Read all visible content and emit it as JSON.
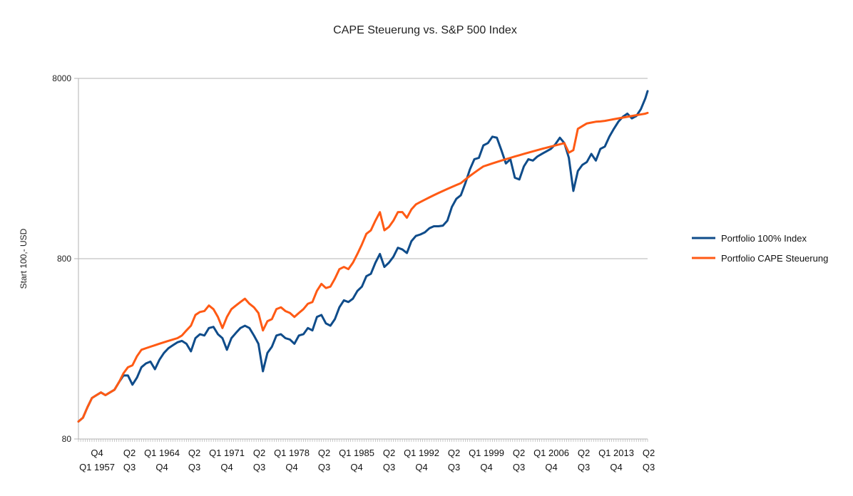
{
  "chart_data": {
    "type": "line",
    "title": "CAPE Steuerung vs. S&P 500 Index",
    "xlabel": "",
    "ylabel": "Start 100,- USD",
    "y_scale": "log",
    "ylim": [
      80,
      8000
    ],
    "y_ticks": [
      80,
      800,
      8000
    ],
    "y_tick_labels": [
      "80",
      "800",
      "8000"
    ],
    "grid": true,
    "legend_position": "right",
    "x_start": "1954 Q1",
    "x_end": "2017 Q2",
    "x_tick_labels": [
      [
        "Q4",
        "Q1 1957"
      ],
      [
        "Q3",
        "Q2"
      ],
      [
        "Q1 1964",
        "Q4"
      ],
      [
        "Q3",
        "Q2"
      ],
      [
        "Q1 1971",
        "Q4"
      ],
      [
        "Q3",
        "Q2"
      ],
      [
        "Q1 1978",
        "Q4"
      ],
      [
        "Q3",
        "Q2"
      ],
      [
        "Q1 1985",
        "Q4"
      ],
      [
        "Q3",
        "Q2"
      ],
      [
        "Q1 1992",
        "Q4"
      ],
      [
        "Q3",
        "Q2"
      ],
      [
        "Q1 1999",
        "Q4"
      ],
      [
        "Q3",
        "Q2"
      ],
      [
        "Q1 2006",
        "Q4"
      ],
      [
        "Q3",
        "Q2"
      ],
      [
        "Q1 2013",
        "Q4"
      ],
      [
        "Q3",
        "Q2"
      ]
    ],
    "series": [
      {
        "name": "Portfolio 100% Index",
        "color": "#0f4c8a",
        "points": [
          [
            "1954 Q1",
            100
          ],
          [
            "1954 Q3",
            105
          ],
          [
            "1955 Q1",
            120
          ],
          [
            "1955 Q3",
            135
          ],
          [
            "1956 Q1",
            140
          ],
          [
            "1956 Q3",
            145
          ],
          [
            "1957 Q1",
            140
          ],
          [
            "1957 Q3",
            145
          ],
          [
            "1958 Q1",
            150
          ],
          [
            "1958 Q3",
            165
          ],
          [
            "1959 Q1",
            180
          ],
          [
            "1959 Q3",
            180
          ],
          [
            "1960 Q1",
            160
          ],
          [
            "1960 Q3",
            175
          ],
          [
            "1961 Q1",
            200
          ],
          [
            "1961 Q3",
            210
          ],
          [
            "1962 Q1",
            215
          ],
          [
            "1962 Q3",
            195
          ],
          [
            "1963 Q1",
            220
          ],
          [
            "1963 Q3",
            240
          ],
          [
            "1964 Q1",
            255
          ],
          [
            "1964 Q3",
            265
          ],
          [
            "1965 Q1",
            275
          ],
          [
            "1965 Q3",
            280
          ],
          [
            "1966 Q1",
            270
          ],
          [
            "1966 Q3",
            245
          ],
          [
            "1967 Q1",
            290
          ],
          [
            "1967 Q3",
            305
          ],
          [
            "1968 Q1",
            300
          ],
          [
            "1968 Q3",
            330
          ],
          [
            "1969 Q1",
            335
          ],
          [
            "1969 Q3",
            305
          ],
          [
            "1970 Q1",
            290
          ],
          [
            "1970 Q3",
            250
          ],
          [
            "1971 Q1",
            290
          ],
          [
            "1971 Q3",
            310
          ],
          [
            "1972 Q1",
            330
          ],
          [
            "1972 Q3",
            340
          ],
          [
            "1973 Q1",
            330
          ],
          [
            "1973 Q3",
            300
          ],
          [
            "1974 Q1",
            270
          ],
          [
            "1974 Q3",
            190
          ],
          [
            "1975 Q1",
            240
          ],
          [
            "1975 Q3",
            260
          ],
          [
            "1976 Q1",
            300
          ],
          [
            "1976 Q3",
            305
          ],
          [
            "1977 Q1",
            290
          ],
          [
            "1977 Q3",
            285
          ],
          [
            "1978 Q1",
            270
          ],
          [
            "1978 Q3",
            300
          ],
          [
            "1979 Q1",
            305
          ],
          [
            "1979 Q3",
            330
          ],
          [
            "1980 Q1",
            320
          ],
          [
            "1980 Q3",
            380
          ],
          [
            "1981 Q1",
            390
          ],
          [
            "1981 Q3",
            350
          ],
          [
            "1982 Q1",
            340
          ],
          [
            "1982 Q3",
            370
          ],
          [
            "1983 Q1",
            430
          ],
          [
            "1983 Q3",
            470
          ],
          [
            "1984 Q1",
            460
          ],
          [
            "1984 Q3",
            480
          ],
          [
            "1985 Q1",
            530
          ],
          [
            "1985 Q3",
            560
          ],
          [
            "1986 Q1",
            640
          ],
          [
            "1986 Q3",
            660
          ],
          [
            "1987 Q1",
            760
          ],
          [
            "1987 Q3",
            850
          ],
          [
            "1988 Q1",
            720
          ],
          [
            "1988 Q3",
            760
          ],
          [
            "1989 Q1",
            820
          ],
          [
            "1989 Q3",
            920
          ],
          [
            "1990 Q1",
            900
          ],
          [
            "1990 Q3",
            860
          ],
          [
            "1991 Q1",
            1000
          ],
          [
            "1991 Q3",
            1070
          ],
          [
            "1992 Q1",
            1090
          ],
          [
            "1992 Q3",
            1120
          ],
          [
            "1993 Q1",
            1180
          ],
          [
            "1993 Q3",
            1210
          ],
          [
            "1994 Q1",
            1210
          ],
          [
            "1994 Q3",
            1220
          ],
          [
            "1995 Q1",
            1300
          ],
          [
            "1995 Q3",
            1550
          ],
          [
            "1996 Q1",
            1720
          ],
          [
            "1996 Q3",
            1800
          ],
          [
            "1997 Q1",
            2100
          ],
          [
            "1997 Q3",
            2500
          ],
          [
            "1998 Q1",
            2850
          ],
          [
            "1998 Q3",
            2900
          ],
          [
            "1999 Q1",
            3400
          ],
          [
            "1999 Q3",
            3500
          ],
          [
            "2000 Q1",
            3800
          ],
          [
            "2000 Q3",
            3750
          ],
          [
            "2001 Q1",
            3200
          ],
          [
            "2001 Q3",
            2700
          ],
          [
            "2002 Q1",
            2850
          ],
          [
            "2002 Q3",
            2250
          ],
          [
            "2003 Q1",
            2200
          ],
          [
            "2003 Q3",
            2600
          ],
          [
            "2004 Q1",
            2850
          ],
          [
            "2004 Q3",
            2800
          ],
          [
            "2005 Q1",
            2950
          ],
          [
            "2005 Q3",
            3050
          ],
          [
            "2006 Q1",
            3150
          ],
          [
            "2006 Q3",
            3250
          ],
          [
            "2007 Q1",
            3450
          ],
          [
            "2007 Q3",
            3750
          ],
          [
            "2008 Q1",
            3500
          ],
          [
            "2008 Q3",
            2900
          ],
          [
            "2009 Q1",
            1900
          ],
          [
            "2009 Q3",
            2450
          ],
          [
            "2010 Q1",
            2650
          ],
          [
            "2010 Q3",
            2750
          ],
          [
            "2011 Q1",
            3050
          ],
          [
            "2011 Q3",
            2800
          ],
          [
            "2012 Q1",
            3250
          ],
          [
            "2012 Q3",
            3350
          ],
          [
            "2013 Q1",
            3800
          ],
          [
            "2013 Q3",
            4200
          ],
          [
            "2014 Q1",
            4600
          ],
          [
            "2014 Q3",
            4900
          ],
          [
            "2015 Q1",
            5100
          ],
          [
            "2015 Q3",
            4800
          ],
          [
            "2016 Q1",
            4950
          ],
          [
            "2016 Q3",
            5400
          ],
          [
            "2017 Q1",
            6200
          ],
          [
            "2017 Q2",
            6800
          ]
        ]
      },
      {
        "name": "Portfolio CAPE Steuerung",
        "color": "#ff5a14",
        "points": [
          [
            "1954 Q1",
            100
          ],
          [
            "1954 Q3",
            105
          ],
          [
            "1955 Q1",
            120
          ],
          [
            "1955 Q3",
            135
          ],
          [
            "1956 Q1",
            140
          ],
          [
            "1956 Q3",
            145
          ],
          [
            "1957 Q1",
            140
          ],
          [
            "1957 Q3",
            145
          ],
          [
            "1958 Q1",
            150
          ],
          [
            "1958 Q3",
            165
          ],
          [
            "1959 Q1",
            185
          ],
          [
            "1959 Q3",
            200
          ],
          [
            "1960 Q1",
            205
          ],
          [
            "1960 Q3",
            230
          ],
          [
            "1961 Q1",
            250
          ],
          [
            "1961 Q3",
            255
          ],
          [
            "1962 Q1",
            260
          ],
          [
            "1962 Q3",
            265
          ],
          [
            "1963 Q1",
            270
          ],
          [
            "1963 Q3",
            275
          ],
          [
            "1964 Q1",
            280
          ],
          [
            "1964 Q3",
            285
          ],
          [
            "1965 Q1",
            290
          ],
          [
            "1965 Q3",
            300
          ],
          [
            "1966 Q1",
            320
          ],
          [
            "1966 Q3",
            340
          ],
          [
            "1967 Q1",
            390
          ],
          [
            "1967 Q3",
            405
          ],
          [
            "1968 Q1",
            410
          ],
          [
            "1968 Q3",
            440
          ],
          [
            "1969 Q1",
            420
          ],
          [
            "1969 Q3",
            380
          ],
          [
            "1970 Q1",
            330
          ],
          [
            "1970 Q3",
            380
          ],
          [
            "1971 Q1",
            420
          ],
          [
            "1971 Q3",
            440
          ],
          [
            "1972 Q1",
            460
          ],
          [
            "1972 Q3",
            480
          ],
          [
            "1973 Q1",
            450
          ],
          [
            "1973 Q3",
            430
          ],
          [
            "1974 Q1",
            400
          ],
          [
            "1974 Q3",
            320
          ],
          [
            "1975 Q1",
            360
          ],
          [
            "1975 Q3",
            370
          ],
          [
            "1976 Q1",
            420
          ],
          [
            "1976 Q3",
            430
          ],
          [
            "1977 Q1",
            410
          ],
          [
            "1977 Q3",
            400
          ],
          [
            "1978 Q1",
            380
          ],
          [
            "1978 Q3",
            400
          ],
          [
            "1979 Q1",
            420
          ],
          [
            "1979 Q3",
            450
          ],
          [
            "1980 Q1",
            460
          ],
          [
            "1980 Q3",
            530
          ],
          [
            "1981 Q1",
            580
          ],
          [
            "1981 Q3",
            550
          ],
          [
            "1982 Q1",
            560
          ],
          [
            "1982 Q3",
            620
          ],
          [
            "1983 Q1",
            700
          ],
          [
            "1983 Q3",
            720
          ],
          [
            "1984 Q1",
            700
          ],
          [
            "1984 Q3",
            760
          ],
          [
            "1985 Q1",
            850
          ],
          [
            "1985 Q3",
            960
          ],
          [
            "1986 Q1",
            1100
          ],
          [
            "1986 Q3",
            1150
          ],
          [
            "1987 Q1",
            1300
          ],
          [
            "1987 Q3",
            1450
          ],
          [
            "1988 Q1",
            1150
          ],
          [
            "1988 Q3",
            1200
          ],
          [
            "1989 Q1",
            1300
          ],
          [
            "1989 Q3",
            1450
          ],
          [
            "1990 Q1",
            1450
          ],
          [
            "1990 Q3",
            1350
          ],
          [
            "1991 Q1",
            1500
          ],
          [
            "1991 Q3",
            1600
          ],
          [
            "1992 Q1",
            1650
          ],
          [
            "1992 Q3",
            1700
          ],
          [
            "1993 Q1",
            1750
          ],
          [
            "1993 Q3",
            1800
          ],
          [
            "1994 Q1",
            1850
          ],
          [
            "1994 Q3",
            1900
          ],
          [
            "1995 Q1",
            1950
          ],
          [
            "1995 Q3",
            2000
          ],
          [
            "1996 Q1",
            2050
          ],
          [
            "1996 Q3",
            2100
          ],
          [
            "1997 Q1",
            2200
          ],
          [
            "1997 Q3",
            2300
          ],
          [
            "1998 Q1",
            2400
          ],
          [
            "1998 Q3",
            2500
          ],
          [
            "1999 Q1",
            2600
          ],
          [
            "1999 Q3",
            2650
          ],
          [
            "2000 Q1",
            2700
          ],
          [
            "2000 Q3",
            2750
          ],
          [
            "2001 Q1",
            2800
          ],
          [
            "2001 Q3",
            2850
          ],
          [
            "2002 Q1",
            2900
          ],
          [
            "2002 Q3",
            2950
          ],
          [
            "2003 Q1",
            3000
          ],
          [
            "2003 Q3",
            3050
          ],
          [
            "2004 Q1",
            3100
          ],
          [
            "2004 Q3",
            3150
          ],
          [
            "2005 Q1",
            3200
          ],
          [
            "2005 Q3",
            3250
          ],
          [
            "2006 Q1",
            3300
          ],
          [
            "2006 Q3",
            3350
          ],
          [
            "2007 Q1",
            3400
          ],
          [
            "2007 Q3",
            3450
          ],
          [
            "2008 Q1",
            3500
          ],
          [
            "2008 Q3",
            3100
          ],
          [
            "2009 Q1",
            3200
          ],
          [
            "2009 Q3",
            4200
          ],
          [
            "2010 Q1",
            4350
          ],
          [
            "2010 Q3",
            4500
          ],
          [
            "2011 Q1",
            4550
          ],
          [
            "2011 Q3",
            4600
          ],
          [
            "2012 Q1",
            4620
          ],
          [
            "2012 Q3",
            4650
          ],
          [
            "2013 Q1",
            4700
          ],
          [
            "2013 Q3",
            4750
          ],
          [
            "2014 Q1",
            4800
          ],
          [
            "2014 Q3",
            4850
          ],
          [
            "2015 Q1",
            4900
          ],
          [
            "2015 Q3",
            4950
          ],
          [
            "2016 Q1",
            5000
          ],
          [
            "2016 Q3",
            5050
          ],
          [
            "2017 Q1",
            5100
          ],
          [
            "2017 Q2",
            5150
          ]
        ]
      }
    ]
  }
}
